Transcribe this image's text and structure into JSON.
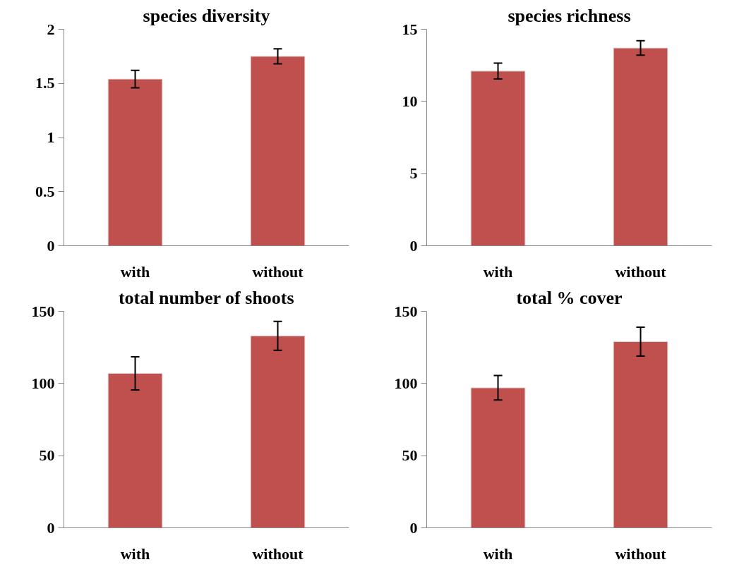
{
  "chart_data": [
    {
      "type": "bar",
      "title": "species diversity",
      "categories": [
        "with",
        "without"
      ],
      "values": [
        1.54,
        1.75
      ],
      "errors": [
        0.08,
        0.07
      ],
      "color": "#c0504d",
      "ylim": [
        0,
        2
      ],
      "yticks": [
        0,
        0.5,
        1,
        1.5,
        2
      ],
      "grid": false
    },
    {
      "type": "bar",
      "title": "species richness",
      "categories": [
        "with",
        "without"
      ],
      "values": [
        12.1,
        13.7
      ],
      "errors": [
        0.55,
        0.5
      ],
      "color": "#c0504d",
      "ylim": [
        0,
        15
      ],
      "yticks": [
        0,
        5,
        10,
        15
      ],
      "grid": false
    },
    {
      "type": "bar",
      "title": "total number of shoots",
      "categories": [
        "with",
        "without"
      ],
      "values": [
        107,
        133
      ],
      "errors": [
        11.5,
        10
      ],
      "color": "#c0504d",
      "ylim": [
        0,
        150
      ],
      "yticks": [
        0,
        50,
        100,
        150
      ],
      "grid": false
    },
    {
      "type": "bar",
      "title": "total % cover",
      "categories": [
        "with",
        "without"
      ],
      "values": [
        97,
        129
      ],
      "errors": [
        8.5,
        10
      ],
      "color": "#c0504d",
      "ylim": [
        0,
        150
      ],
      "yticks": [
        0,
        50,
        100,
        150
      ],
      "grid": false
    }
  ]
}
